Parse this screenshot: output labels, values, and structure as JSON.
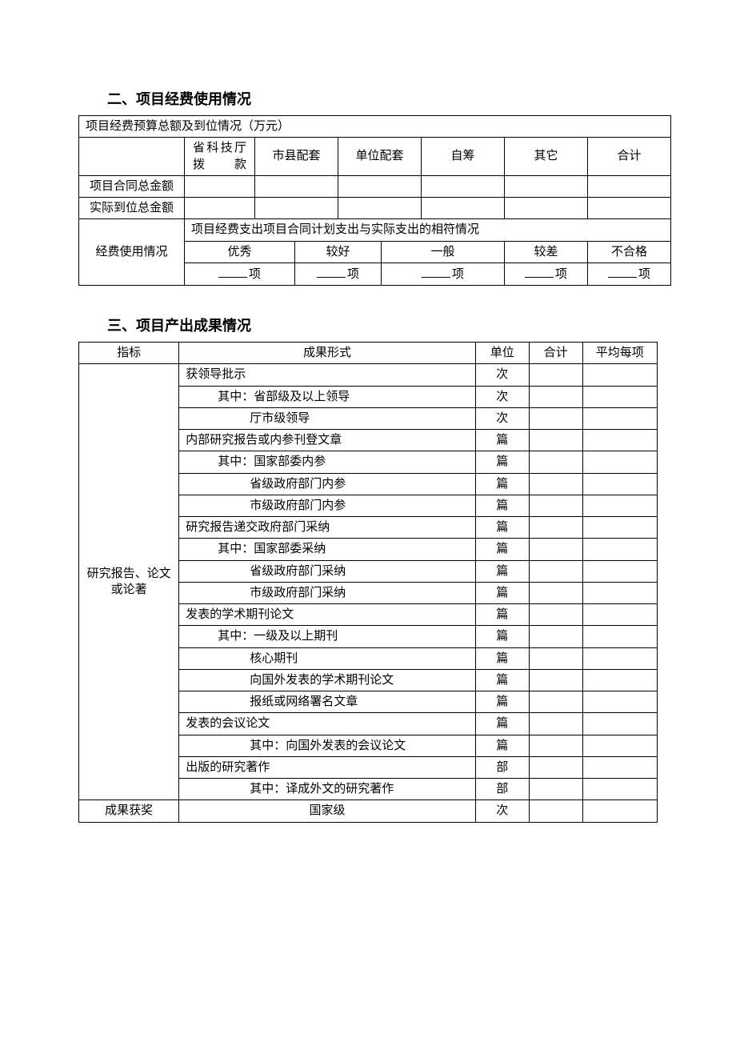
{
  "section2": {
    "title": "二、项目经费使用情况",
    "budget_header": "项目经费预算总额及到位情况（万元）",
    "col_headers": {
      "c1": "省科技厅拨　　款",
      "c2": "市县配套",
      "c3": "单位配套",
      "c4": "自筹",
      "c5": "其它",
      "c6": "合计"
    },
    "row_contract": "项目合同总金额",
    "row_actual": "实际到位总金额",
    "usage_label": "经费使用情况",
    "expense_header": "项目经费支出项目合同计划支出与实际支出的相符情况",
    "ratings": [
      "优秀",
      "较好",
      "一般",
      "较差",
      "不合格"
    ],
    "unit_suffix": "项"
  },
  "section3": {
    "title": "三、项目产出成果情况",
    "headers": {
      "indicator": "指标",
      "form": "成果形式",
      "unit": "单位",
      "total": "合计",
      "avg": "平均每项"
    },
    "group1_label": "研究报告、论文或论著",
    "group2_label": "成果获奖",
    "rows": [
      {
        "text": "获领导批示",
        "unit": "次",
        "indent": 0
      },
      {
        "text": "其中：省部级及以上领导",
        "unit": "次",
        "indent": 1
      },
      {
        "text": "厅市级领导",
        "unit": "次",
        "indent": 2
      },
      {
        "text": "内部研究报告或内参刊登文章",
        "unit": "篇",
        "indent": 0
      },
      {
        "text": "其中：国家部委内参",
        "unit": "篇",
        "indent": 1
      },
      {
        "text": "省级政府部门内参",
        "unit": "篇",
        "indent": 2
      },
      {
        "text": "市级政府部门内参",
        "unit": "篇",
        "indent": 2
      },
      {
        "text": "研究报告递交政府部门采纳",
        "unit": "篇",
        "indent": 0
      },
      {
        "text": "其中：国家部委采纳",
        "unit": "篇",
        "indent": 1
      },
      {
        "text": "省级政府部门采纳",
        "unit": "篇",
        "indent": 2
      },
      {
        "text": "市级政府部门采纳",
        "unit": "篇",
        "indent": 2
      },
      {
        "text": "发表的学术期刊论文",
        "unit": "篇",
        "indent": 0
      },
      {
        "text": "其中：一级及以上期刊",
        "unit": "篇",
        "indent": 1
      },
      {
        "text": "核心期刊",
        "unit": "篇",
        "indent": 2
      },
      {
        "text": "向国外发表的学术期刊论文",
        "unit": "篇",
        "indent": 2
      },
      {
        "text": "报纸或网络署名文章",
        "unit": "篇",
        "indent": 2
      },
      {
        "text": "发表的会议论文",
        "unit": "篇",
        "indent": 0
      },
      {
        "text": "其中：向国外发表的会议论文",
        "unit": "篇",
        "indent": 2
      },
      {
        "text": "出版的研究著作",
        "unit": "部",
        "indent": 0
      },
      {
        "text": "其中：译成外文的研究著作",
        "unit": "部",
        "indent": 2
      }
    ],
    "group2_row": {
      "text": "国家级",
      "unit": "次"
    }
  }
}
